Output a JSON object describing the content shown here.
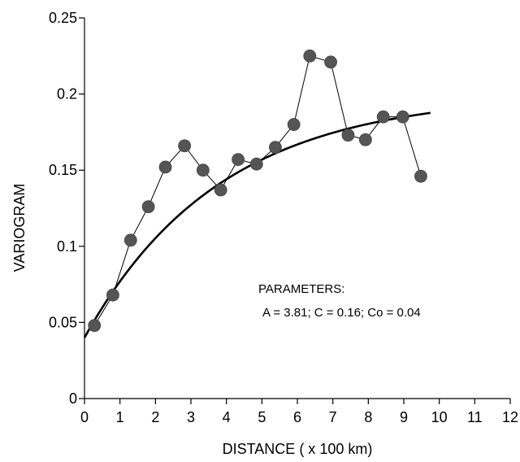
{
  "chart_data": {
    "type": "scatter",
    "title": "",
    "xlabel": "DISTANCE ( x 100 km)",
    "ylabel": "VARIOGRAM",
    "xlim": [
      0,
      12
    ],
    "ylim": [
      0,
      0.25
    ],
    "xticks": [
      "0",
      "1",
      "2",
      "3",
      "4",
      "5",
      "6",
      "7",
      "8",
      "9",
      "10",
      "11",
      "12"
    ],
    "yticks": [
      "0",
      "0.05",
      "0.1",
      "0.15",
      "0.2",
      "0.25"
    ],
    "grid": false,
    "legend": "none",
    "series": [
      {
        "style": "markers-connected",
        "color": "#555555",
        "points": [
          {
            "x": 0.28,
            "y": 0.048
          },
          {
            "x": 0.8,
            "y": 0.068
          },
          {
            "x": 1.3,
            "y": 0.104
          },
          {
            "x": 1.8,
            "y": 0.126
          },
          {
            "x": 2.28,
            "y": 0.152
          },
          {
            "x": 2.82,
            "y": 0.166
          },
          {
            "x": 3.34,
            "y": 0.15
          },
          {
            "x": 3.84,
            "y": 0.137
          },
          {
            "x": 4.33,
            "y": 0.157
          },
          {
            "x": 4.85,
            "y": 0.154
          },
          {
            "x": 5.38,
            "y": 0.165
          },
          {
            "x": 5.9,
            "y": 0.18
          },
          {
            "x": 6.35,
            "y": 0.225
          },
          {
            "x": 6.94,
            "y": 0.221
          },
          {
            "x": 7.43,
            "y": 0.173
          },
          {
            "x": 7.92,
            "y": 0.17
          },
          {
            "x": 8.42,
            "y": 0.185
          },
          {
            "x": 8.97,
            "y": 0.185
          },
          {
            "x": 9.48,
            "y": 0.146
          }
        ]
      },
      {
        "style": "fitted-model-curve",
        "model": "exponential",
        "color": "#000000",
        "parameters": {
          "A": 3.81,
          "C": 0.16,
          "Co": 0.04
        },
        "x_range": [
          0,
          9.75
        ]
      }
    ],
    "annotations": {
      "heading": "PARAMETERS:",
      "values": "A = 3.81; C = 0.16; Co = 0.04"
    }
  }
}
